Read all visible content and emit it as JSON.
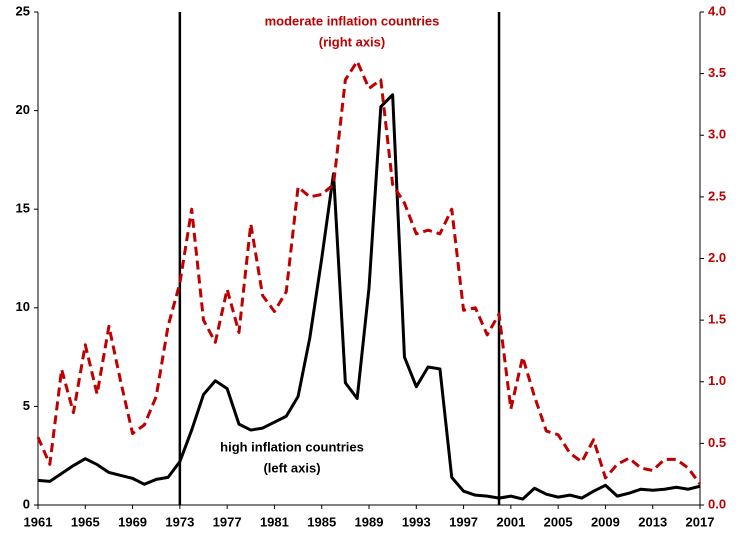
{
  "chart_data": {
    "type": "line",
    "x": [
      1961,
      1962,
      1963,
      1964,
      1965,
      1966,
      1967,
      1968,
      1969,
      1970,
      1971,
      1972,
      1973,
      1974,
      1975,
      1976,
      1977,
      1978,
      1979,
      1980,
      1981,
      1982,
      1983,
      1984,
      1985,
      1986,
      1987,
      1988,
      1989,
      1990,
      1991,
      1992,
      1993,
      1994,
      1995,
      1996,
      1997,
      1998,
      1999,
      2000,
      2001,
      2002,
      2003,
      2004,
      2005,
      2006,
      2007,
      2008,
      2009,
      2010,
      2011,
      2012,
      2013,
      2014,
      2015,
      2016,
      2017
    ],
    "series": [
      {
        "name": "high inflation countries (left axis)",
        "color": "#000000",
        "dash": false,
        "values": [
          1.25,
          1.2,
          1.6,
          2.0,
          2.35,
          2.05,
          1.65,
          1.5,
          1.35,
          1.05,
          1.3,
          1.4,
          2.2,
          3.8,
          5.6,
          6.3,
          5.9,
          4.1,
          3.8,
          3.9,
          4.2,
          4.5,
          5.5,
          8.5,
          12.5,
          16.8,
          6.2,
          5.4,
          11,
          20.2,
          20.8,
          7.5,
          6.0,
          7.0,
          6.9,
          1.4,
          0.7,
          0.5,
          0.45,
          0.35,
          0.45,
          0.3,
          0.85,
          0.55,
          0.4,
          0.5,
          0.35,
          0.7,
          1.0,
          0.45,
          0.6,
          0.8,
          0.75,
          0.8,
          0.9,
          0.8,
          0.95
        ]
      },
      {
        "name": "moderate inflation countries (right axis)",
        "color": "#c00000",
        "dash": true,
        "axis": "y2",
        "values": [
          0.55,
          0.33,
          1.1,
          0.75,
          1.3,
          0.9,
          1.45,
          1.0,
          0.58,
          0.65,
          0.88,
          1.45,
          1.8,
          2.4,
          1.5,
          1.32,
          1.75,
          1.4,
          2.28,
          1.7,
          1.57,
          1.73,
          2.58,
          2.5,
          2.52,
          2.6,
          3.45,
          3.6,
          3.38,
          3.45,
          2.6,
          2.45,
          2.2,
          2.23,
          2.2,
          2.4,
          1.58,
          1.6,
          1.38,
          1.55,
          0.78,
          1.2,
          0.88,
          0.6,
          0.57,
          0.42,
          0.35,
          0.53,
          0.22,
          0.33,
          0.38,
          0.3,
          0.28,
          0.37,
          0.37,
          0.3,
          0.17
        ]
      }
    ],
    "annotations": [
      {
        "lines": [
          "moderate inflation countries",
          "(right axis)"
        ],
        "color": "#c00000"
      },
      {
        "lines": [
          "high inflation countries",
          "(left axis)"
        ],
        "color": "#000000"
      }
    ],
    "vlines": [
      1973,
      2000
    ],
    "xlim": [
      1961,
      2017
    ],
    "xticks": [
      1961,
      1965,
      1969,
      1973,
      1977,
      1981,
      1985,
      1989,
      1993,
      1997,
      2001,
      2005,
      2009,
      2013,
      2017
    ],
    "ylim": [
      0,
      25
    ],
    "yticks": [
      0,
      5,
      10,
      15,
      20,
      25
    ],
    "y2lim": [
      0,
      4
    ],
    "y2ticks": [
      {
        "value": 0,
        "label": "0.0"
      },
      0.5,
      {
        "value": 1,
        "label": "1.0"
      },
      1.5,
      {
        "value": 2,
        "label": "2.0"
      },
      2.5,
      {
        "value": 3,
        "label": "3.0"
      },
      3.5,
      {
        "value": 4,
        "label": "4.0"
      }
    ],
    "y2_color": "#c00000"
  }
}
